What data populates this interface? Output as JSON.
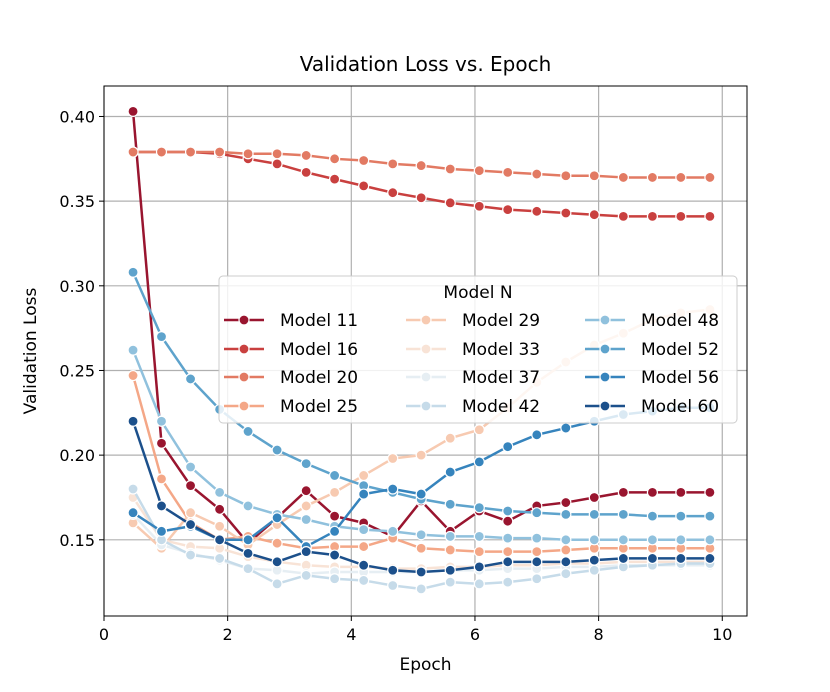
{
  "chart_data": {
    "type": "line",
    "title": "Validation Loss vs. Epoch",
    "xlabel": "Epoch",
    "ylabel": "Validation Loss",
    "xlim": [
      0,
      10.4
    ],
    "ylim": [
      0.105,
      0.418
    ],
    "xticks": [
      0,
      2,
      4,
      6,
      8,
      10
    ],
    "xtick_labels": [
      "0",
      "2",
      "4",
      "6",
      "8",
      "10"
    ],
    "yticks": [
      0.15,
      0.2,
      0.25,
      0.3,
      0.35,
      0.4
    ],
    "ytick_labels": [
      "0.15",
      "0.20",
      "0.25",
      "0.30",
      "0.35",
      "0.40"
    ],
    "grid": true,
    "legend": {
      "title": "Model N",
      "placement": "center-right",
      "columns": 3
    },
    "x": [
      0.47,
      0.93,
      1.4,
      1.87,
      2.33,
      2.8,
      3.27,
      3.73,
      4.2,
      4.67,
      5.13,
      5.6,
      6.07,
      6.53,
      7.0,
      7.47,
      7.93,
      8.4,
      8.87,
      9.33,
      9.8
    ],
    "series": [
      {
        "name": "Model 11",
        "color": "#99152f",
        "values": [
          0.403,
          0.207,
          0.182,
          0.168,
          0.148,
          0.163,
          0.179,
          0.164,
          0.16,
          0.152,
          0.173,
          0.155,
          0.167,
          0.161,
          0.17,
          0.172,
          0.175,
          0.178,
          0.178,
          0.178,
          0.178
        ]
      },
      {
        "name": "Model 16",
        "color": "#c9403f",
        "values": [
          0.379,
          0.379,
          0.379,
          0.378,
          0.375,
          0.372,
          0.367,
          0.363,
          0.359,
          0.355,
          0.352,
          0.349,
          0.347,
          0.345,
          0.344,
          0.343,
          0.342,
          0.341,
          0.341,
          0.341,
          0.341
        ]
      },
      {
        "name": "Model 20",
        "color": "#e27a63",
        "values": [
          0.379,
          0.379,
          0.379,
          0.379,
          0.378,
          0.378,
          0.377,
          0.375,
          0.374,
          0.372,
          0.371,
          0.369,
          0.368,
          0.367,
          0.366,
          0.365,
          0.365,
          0.364,
          0.364,
          0.364,
          0.364
        ]
      },
      {
        "name": "Model 25",
        "color": "#f4a787",
        "values": [
          0.247,
          0.186,
          0.16,
          0.15,
          0.152,
          0.148,
          0.145,
          0.146,
          0.146,
          0.151,
          0.145,
          0.144,
          0.143,
          0.143,
          0.143,
          0.144,
          0.145,
          0.145,
          0.145,
          0.145,
          0.145
        ]
      },
      {
        "name": "Model 29",
        "color": "#f7cab1",
        "values": [
          0.16,
          0.145,
          0.166,
          0.158,
          0.147,
          0.159,
          0.17,
          0.178,
          0.188,
          0.198,
          0.2,
          0.21,
          0.215,
          0.228,
          0.243,
          0.255,
          0.265,
          0.272,
          0.28,
          0.284,
          0.286
        ]
      },
      {
        "name": "Model 33",
        "color": "#f8e3d6",
        "values": [
          0.175,
          0.15,
          0.146,
          0.145,
          0.14,
          0.137,
          0.135,
          0.134,
          0.134,
          0.133,
          0.133,
          0.134,
          0.134,
          0.135,
          0.135,
          0.136,
          0.136,
          0.137,
          0.137,
          0.137,
          0.137
        ]
      },
      {
        "name": "Model 37",
        "color": "#e6eef3",
        "values": [
          0.165,
          0.147,
          0.142,
          0.138,
          0.133,
          0.132,
          0.13,
          0.131,
          0.131,
          0.131,
          0.131,
          0.132,
          0.132,
          0.133,
          0.133,
          0.134,
          0.134,
          0.135,
          0.135,
          0.135,
          0.135
        ]
      },
      {
        "name": "Model 42",
        "color": "#c6dbe9",
        "values": [
          0.18,
          0.15,
          0.141,
          0.139,
          0.133,
          0.124,
          0.129,
          0.127,
          0.126,
          0.123,
          0.121,
          0.125,
          0.124,
          0.125,
          0.127,
          0.13,
          0.132,
          0.134,
          0.135,
          0.136,
          0.136
        ]
      },
      {
        "name": "Model 48",
        "color": "#90c1dd",
        "values": [
          0.262,
          0.22,
          0.193,
          0.178,
          0.17,
          0.165,
          0.162,
          0.158,
          0.156,
          0.155,
          0.153,
          0.152,
          0.152,
          0.151,
          0.151,
          0.15,
          0.15,
          0.15,
          0.15,
          0.15,
          0.15
        ]
      },
      {
        "name": "Model 52",
        "color": "#5ea3cc",
        "values": [
          0.308,
          0.27,
          0.245,
          0.227,
          0.214,
          0.203,
          0.195,
          0.188,
          0.182,
          0.178,
          0.174,
          0.171,
          0.169,
          0.167,
          0.166,
          0.165,
          0.165,
          0.165,
          0.164,
          0.164,
          0.164
        ]
      },
      {
        "name": "Model 56",
        "color": "#3684bd",
        "values": [
          0.166,
          0.155,
          0.158,
          0.15,
          0.15,
          0.163,
          0.146,
          0.155,
          0.177,
          0.18,
          0.177,
          0.19,
          0.196,
          0.205,
          0.212,
          0.216,
          0.22,
          0.224,
          0.226,
          0.228,
          0.228
        ]
      },
      {
        "name": "Model 60",
        "color": "#1c508b",
        "values": [
          0.22,
          0.17,
          0.159,
          0.15,
          0.142,
          0.137,
          0.143,
          0.141,
          0.135,
          0.132,
          0.131,
          0.132,
          0.134,
          0.137,
          0.137,
          0.137,
          0.138,
          0.139,
          0.139,
          0.139,
          0.139
        ]
      }
    ]
  }
}
